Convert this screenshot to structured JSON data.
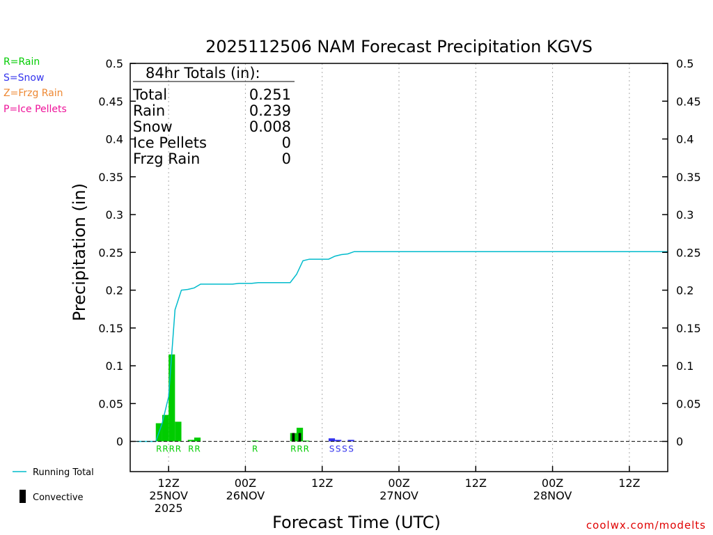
{
  "chart_data": {
    "type": "bar",
    "title": "2025112506 NAM Forecast Precipitation KGVS",
    "xlabel": "Forecast Time (UTC)",
    "ylabel": "Precipitation (in)",
    "ylim": [
      -0.04,
      0.5
    ],
    "yticks": [
      "0",
      "0.05",
      "0.1",
      "0.15",
      "0.2",
      "0.25",
      "0.3",
      "0.35",
      "0.4",
      "0.45",
      "0.5"
    ],
    "xlim_hours": [
      0,
      84
    ],
    "x_units": "forecast hour from 2025-11-25 06Z",
    "xticks": [
      {
        "hour": 6,
        "line1": "12Z",
        "line2": "25NOV",
        "line3": "2025"
      },
      {
        "hour": 18,
        "line1": "00Z",
        "line2": "26NOV",
        "line3": ""
      },
      {
        "hour": 30,
        "line1": "12Z",
        "line2": "",
        "line3": ""
      },
      {
        "hour": 42,
        "line1": "00Z",
        "line2": "27NOV",
        "line3": ""
      },
      {
        "hour": 54,
        "line1": "12Z",
        "line2": "",
        "line3": ""
      },
      {
        "hour": 66,
        "line1": "00Z",
        "line2": "28NOV",
        "line3": ""
      },
      {
        "hour": 78,
        "line1": "12Z",
        "line2": "",
        "line3": ""
      }
    ],
    "series": [
      {
        "name": "Rain",
        "color": "#00cc00",
        "bars": [
          {
            "hour": 5,
            "value": 0.024
          },
          {
            "hour": 6,
            "value": 0.035
          },
          {
            "hour": 7,
            "value": 0.115
          },
          {
            "hour": 8,
            "value": 0.026
          },
          {
            "hour": 10,
            "value": 0.002
          },
          {
            "hour": 11,
            "value": 0.005
          },
          {
            "hour": 20,
            "value": 0.001
          },
          {
            "hour": 26,
            "value": 0.011
          },
          {
            "hour": 27,
            "value": 0.018
          },
          {
            "hour": 28,
            "value": 0.001
          }
        ]
      },
      {
        "name": "Snow",
        "color": "#3333ee",
        "bars": [
          {
            "hour": 32,
            "value": 0.004
          },
          {
            "hour": 33,
            "value": 0.002
          },
          {
            "hour": 35,
            "value": 0.002
          }
        ]
      },
      {
        "name": "Convective",
        "color": "#000000",
        "bars": [
          {
            "hour": 26,
            "value": 0.011
          },
          {
            "hour": 27,
            "value": 0.011
          }
        ]
      },
      {
        "name": "Running Total",
        "color": "#00bbcc",
        "points": [
          [
            1,
            0.0
          ],
          [
            2,
            0.0
          ],
          [
            3,
            0.0
          ],
          [
            4,
            0.0
          ],
          [
            5,
            0.024
          ],
          [
            6,
            0.059
          ],
          [
            7,
            0.174
          ],
          [
            8,
            0.2
          ],
          [
            9,
            0.201
          ],
          [
            10,
            0.203
          ],
          [
            11,
            0.208
          ],
          [
            12,
            0.208
          ],
          [
            13,
            0.208
          ],
          [
            14,
            0.208
          ],
          [
            15,
            0.208
          ],
          [
            16,
            0.208
          ],
          [
            17,
            0.209
          ],
          [
            18,
            0.209
          ],
          [
            19,
            0.209
          ],
          [
            20,
            0.21
          ],
          [
            21,
            0.21
          ],
          [
            22,
            0.21
          ],
          [
            23,
            0.21
          ],
          [
            24,
            0.21
          ],
          [
            25,
            0.21
          ],
          [
            26,
            0.221
          ],
          [
            27,
            0.239
          ],
          [
            28,
            0.241
          ],
          [
            29,
            0.241
          ],
          [
            30,
            0.241
          ],
          [
            31,
            0.241
          ],
          [
            32,
            0.245
          ],
          [
            33,
            0.247
          ],
          [
            34,
            0.248
          ],
          [
            35,
            0.251
          ],
          [
            36,
            0.251
          ],
          [
            48,
            0.251
          ],
          [
            60,
            0.251
          ],
          [
            72,
            0.251
          ],
          [
            84,
            0.251
          ]
        ]
      }
    ],
    "ptype_labels": [
      {
        "hour": 5,
        "text": "R",
        "color": "#00cc00"
      },
      {
        "hour": 6,
        "text": "R",
        "color": "#00cc00"
      },
      {
        "hour": 7,
        "text": "R",
        "color": "#00cc00"
      },
      {
        "hour": 8,
        "text": "R",
        "color": "#00cc00"
      },
      {
        "hour": 10,
        "text": "R",
        "color": "#00cc00"
      },
      {
        "hour": 11,
        "text": "R",
        "color": "#00cc00"
      },
      {
        "hour": 20,
        "text": "R",
        "color": "#00cc00"
      },
      {
        "hour": 26,
        "text": "R",
        "color": "#00cc00"
      },
      {
        "hour": 27,
        "text": "R",
        "color": "#00cc00"
      },
      {
        "hour": 28,
        "text": "R",
        "color": "#00cc00"
      },
      {
        "hour": 32,
        "text": "S",
        "color": "#3333ee"
      },
      {
        "hour": 33,
        "text": "S",
        "color": "#3333ee"
      },
      {
        "hour": 34,
        "text": "S",
        "color": "#3333ee"
      },
      {
        "hour": 35,
        "text": "S",
        "color": "#3333ee"
      }
    ],
    "totals_box": {
      "heading": "84hr Totals (in):",
      "rows": [
        {
          "label": "Total",
          "value": "0.251"
        },
        {
          "label": "Rain",
          "value": "0.239"
        },
        {
          "label": "Snow",
          "value": "0.008"
        },
        {
          "label": "Ice Pellets",
          "value": "0"
        },
        {
          "label": "Frzg Rain",
          "value": "0"
        }
      ]
    },
    "grid": "vertical dotted at 12Z/00Z",
    "zero_line": "dashed"
  },
  "legend_keys": [
    {
      "text": "R=Rain",
      "color": "#00cc00"
    },
    {
      "text": "S=Snow",
      "color": "#3333ee"
    },
    {
      "text": "Z=Frzg Rain",
      "color": "#ee8833"
    },
    {
      "text": "P=Ice Pellets",
      "color": "#ee1199"
    }
  ],
  "bottom_legend": {
    "running_total_label": "Running Total",
    "convective_label": "Convective",
    "running_total_color": "#00bbcc"
  },
  "credit": "coolwx.com/modelts"
}
